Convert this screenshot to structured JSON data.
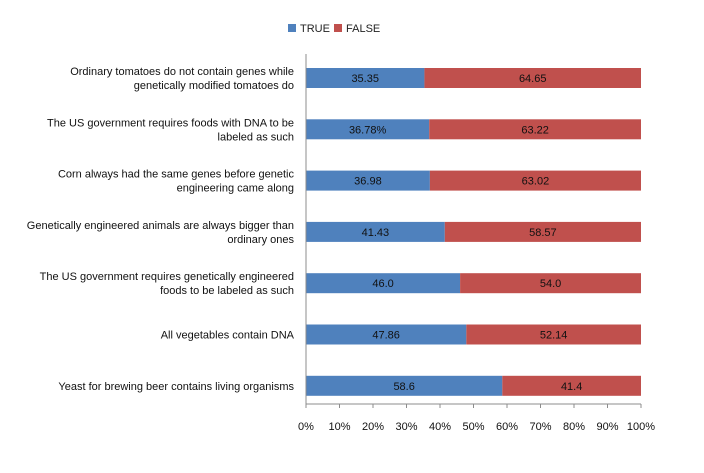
{
  "chart_data": {
    "type": "bar",
    "orientation": "horizontal",
    "stacked": "percent",
    "categories": [
      "Ordinary tomatoes do not contain genes while genetically modified tomatoes do",
      "The US government requires foods with DNA to be labeled as such",
      "Corn always had the same genes before genetic engineering came along",
      "Genetically engineered animals are always bigger than ordinary ones",
      "The US government requires genetically engineered foods to be labeled as such",
      "All vegetables contain DNA",
      "Yeast for brewing beer contains living organisms"
    ],
    "category_label_lines": [
      [
        "Ordinary tomatoes do not contain genes while",
        "genetically modified tomatoes do"
      ],
      [
        "The US government requires foods with DNA to be",
        "labeled as such"
      ],
      [
        "Corn always had the same genes before genetic",
        "engineering came along"
      ],
      [
        "Genetically engineered animals are always bigger than",
        "ordinary ones"
      ],
      [
        "The US government requires genetically engineered",
        "foods to be labeled as such"
      ],
      [
        "All vegetables contain DNA"
      ],
      [
        "Yeast for brewing beer contains living organisms"
      ]
    ],
    "series": [
      {
        "name": "TRUE",
        "color": "#4f81bd",
        "values": [
          35.35,
          36.78,
          36.98,
          41.43,
          46.0,
          47.86,
          58.6
        ],
        "labels": [
          "35.35",
          "36.78%",
          "36.98",
          "41.43",
          "46.0",
          "47.86",
          "58.6"
        ]
      },
      {
        "name": "FALSE",
        "color": "#c0504d",
        "values": [
          64.65,
          63.22,
          63.02,
          58.57,
          54.0,
          52.14,
          41.4
        ],
        "labels": [
          "64.65",
          "63.22",
          "63.02",
          "58.57",
          "54.0",
          "52.14",
          "41.4"
        ]
      }
    ],
    "xlim": [
      0,
      100
    ],
    "x_ticks": [
      "0%",
      "10%",
      "20%",
      "30%",
      "40%",
      "50%",
      "60%",
      "70%",
      "80%",
      "90%",
      "100%"
    ],
    "grid": false,
    "legend_position": "top"
  }
}
